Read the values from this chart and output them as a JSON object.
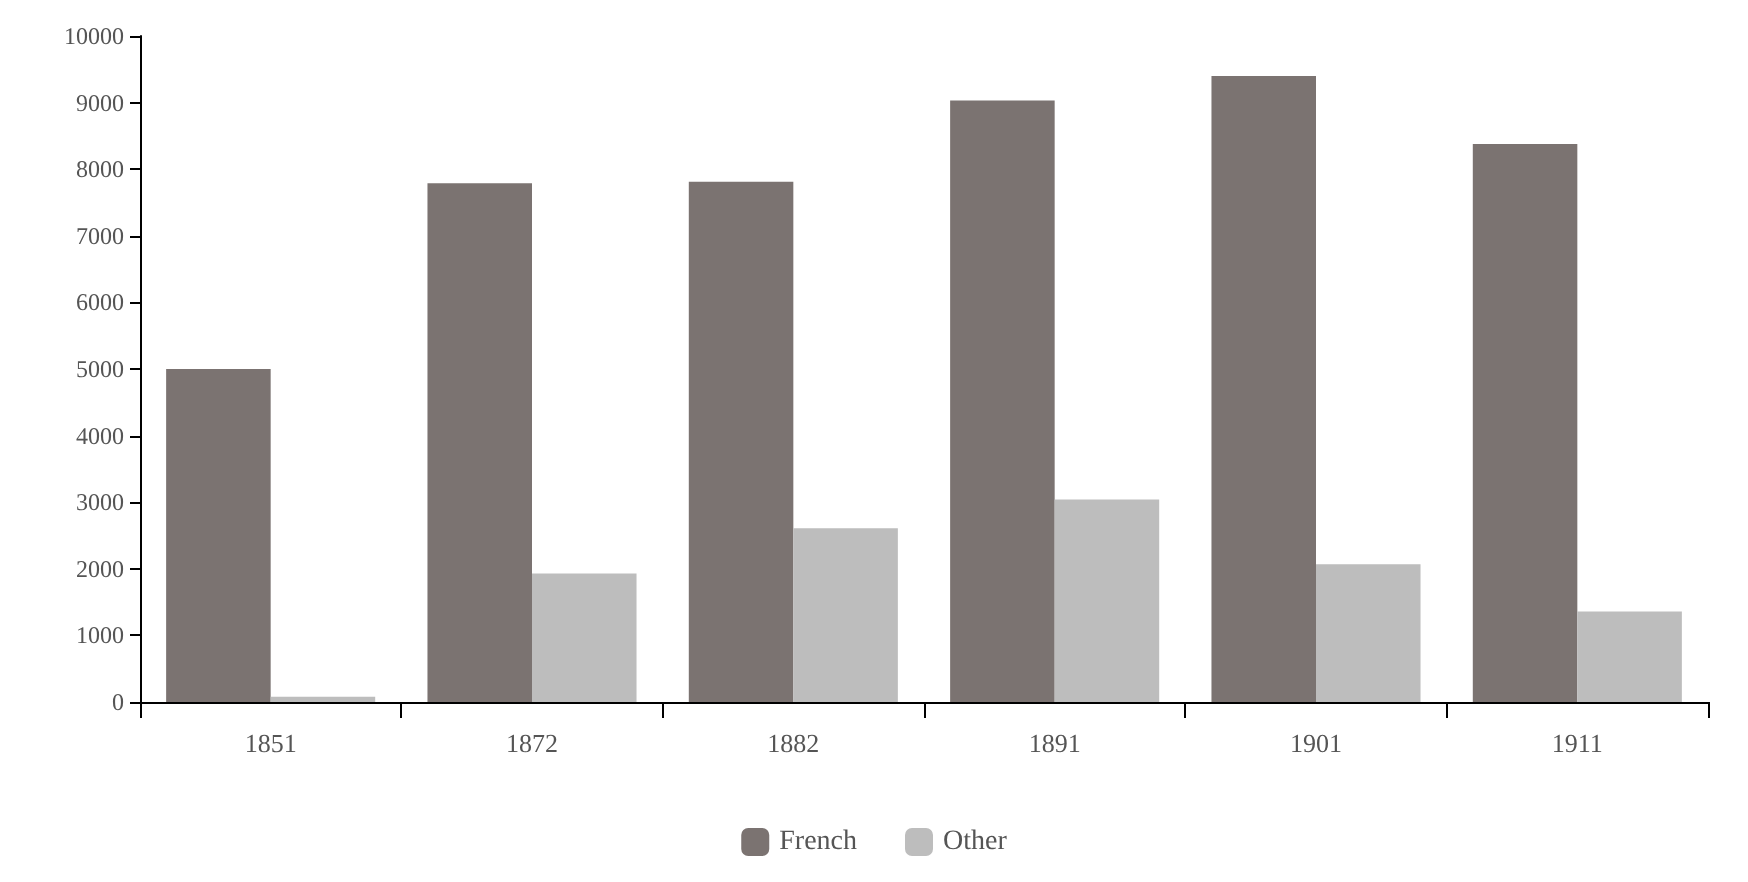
{
  "chart_data": {
    "type": "bar",
    "categories": [
      "1851",
      "1872",
      "1882",
      "1891",
      "1901",
      "1911"
    ],
    "series": [
      {
        "name": "French",
        "color": "#7b7371",
        "values": [
          5000,
          7790,
          7810,
          9030,
          9400,
          8380
        ]
      },
      {
        "name": "Other",
        "color": "#bdbdbd",
        "values": [
          80,
          1930,
          2610,
          3040,
          2070,
          1360
        ]
      }
    ],
    "ylim": [
      0,
      10000
    ],
    "yticks": [
      0,
      1000,
      2000,
      3000,
      4000,
      5000,
      6000,
      7000,
      8000,
      9000,
      10000
    ],
    "grid": false,
    "legend": "bottom"
  }
}
